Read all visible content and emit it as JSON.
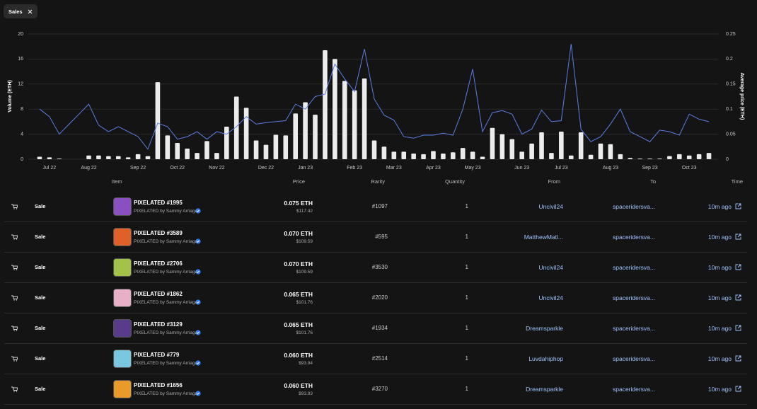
{
  "filter": {
    "label": "Sales"
  },
  "chart_data": {
    "type": "bar-line",
    "y_label": "Volume (ETH)",
    "y2_label": "Average price (ETH)",
    "categories": [
      null,
      "Jul 22",
      null,
      null,
      null,
      "Aug 22",
      null,
      null,
      null,
      null,
      "Sep 22",
      null,
      null,
      null,
      "Oct 22",
      null,
      null,
      null,
      "Nov 22",
      null,
      null,
      null,
      null,
      "Dec 22",
      null,
      null,
      null,
      "Jan 23",
      null,
      null,
      null,
      null,
      "Feb 23",
      null,
      null,
      null,
      "Mar 23",
      null,
      null,
      null,
      "Apr 23",
      null,
      null,
      null,
      "May 23",
      null,
      null,
      null,
      null,
      "Jun 23",
      null,
      null,
      null,
      "Jul 23",
      null,
      null,
      null,
      null,
      "Aug 23",
      null,
      null,
      null,
      "Sep 23",
      null,
      null,
      null,
      "Oct 23",
      null,
      null
    ],
    "series": [
      {
        "type": "bar",
        "color": "#ececec",
        "values": [
          0.4,
          0.3,
          0.1,
          0,
          0,
          0.6,
          0.6,
          0.5,
          0.5,
          0.3,
          0.8,
          0.5,
          12.3,
          3.8,
          2.6,
          1.7,
          1.0,
          2.9,
          1.0,
          5.2,
          10.0,
          8.2,
          3.0,
          2.3,
          3.9,
          3.8,
          7.3,
          9.1,
          7.1,
          17.4,
          16.0,
          12.5,
          11.0,
          12.9,
          3.0,
          2.0,
          1.2,
          1.2,
          0.9,
          0.8,
          1.3,
          0.9,
          1.1,
          1.8,
          1.2,
          0.4,
          5.0,
          4.0,
          3.2,
          1.2,
          2.5,
          4.3,
          1.0,
          4.4,
          0.6,
          4.3,
          0.7,
          2.5,
          2.4,
          0.8,
          0.2,
          0.1,
          0.1,
          0.1,
          0.5,
          0.8,
          0.6,
          0.8,
          1.0
        ]
      },
      {
        "type": "line",
        "axis": "y2",
        "color": "#5a7fe6",
        "values": [
          0.1,
          0.085,
          0.05,
          0.07,
          0.09,
          0.11,
          0.068,
          0.055,
          0.065,
          0.055,
          0.045,
          0.02,
          0.072,
          0.065,
          0.04,
          0.045,
          0.055,
          0.04,
          0.055,
          0.05,
          0.065,
          0.085,
          0.07,
          0.073,
          0.075,
          0.077,
          0.11,
          0.1,
          0.125,
          0.13,
          0.19,
          0.16,
          0.135,
          0.22,
          0.12,
          0.088,
          0.078,
          0.045,
          0.042,
          0.048,
          0.048,
          0.052,
          0.048,
          0.1,
          0.18,
          0.055,
          0.093,
          0.097,
          0.09,
          0.05,
          0.06,
          0.098,
          0.075,
          0.077,
          0.23,
          0.06,
          0.035,
          0.045,
          0.07,
          0.1,
          0.055,
          0.045,
          0.035,
          0.058,
          0.055,
          0.048,
          0.09,
          0.08,
          0.075
        ]
      }
    ],
    "ylim": [
      0,
      20
    ],
    "yticks": [
      0,
      4,
      8,
      12,
      16,
      20
    ],
    "y2lim": [
      0,
      0.25
    ],
    "y2ticks": [
      0,
      0.05,
      0.1,
      0.15,
      0.2,
      0.25
    ],
    "grid": true
  },
  "table": {
    "columns": [
      "Item",
      "Price",
      "Rarity",
      "Quantity",
      "From",
      "To",
      "Time"
    ],
    "rows": [
      {
        "event": "Sale",
        "item": "PIXELATED #1995",
        "collection": "PIXELATED by Sammy Arriaga",
        "price": "0.075 ETH",
        "price_usd": "$117.42",
        "rarity": "#1097",
        "quantity": "1",
        "from": "Uncivil24",
        "to": "spaceridersva...",
        "time": "10m ago"
      },
      {
        "event": "Sale",
        "item": "PIXELATED #3589",
        "collection": "PIXELATED by Sammy Arriaga",
        "price": "0.070 ETH",
        "price_usd": "$109.59",
        "rarity": "#595",
        "quantity": "1",
        "from": "MatthewMatl...",
        "to": "spaceridersva...",
        "time": "10m ago"
      },
      {
        "event": "Sale",
        "item": "PIXELATED #2706",
        "collection": "PIXELATED by Sammy Arriaga",
        "price": "0.070 ETH",
        "price_usd": "$109.59",
        "rarity": "#3530",
        "quantity": "1",
        "from": "Uncivil24",
        "to": "spaceridersva...",
        "time": "10m ago"
      },
      {
        "event": "Sale",
        "item": "PIXELATED #1862",
        "collection": "PIXELATED by Sammy Arriaga",
        "price": "0.065 ETH",
        "price_usd": "$101.76",
        "rarity": "#2020",
        "quantity": "1",
        "from": "Uncivil24",
        "to": "spaceridersva...",
        "time": "10m ago"
      },
      {
        "event": "Sale",
        "item": "PIXELATED #3129",
        "collection": "PIXELATED by Sammy Arriaga",
        "price": "0.065 ETH",
        "price_usd": "$101.76",
        "rarity": "#1934",
        "quantity": "1",
        "from": "Dreamsparkle",
        "to": "spaceridersva...",
        "time": "10m ago"
      },
      {
        "event": "Sale",
        "item": "PIXELATED #779",
        "collection": "PIXELATED by Sammy Arriaga",
        "price": "0.060 ETH",
        "price_usd": "$93.94",
        "rarity": "#2514",
        "quantity": "1",
        "from": "Luvdahiphop",
        "to": "spaceridersva...",
        "time": "10m ago"
      },
      {
        "event": "Sale",
        "item": "PIXELATED #1656",
        "collection": "PIXELATED by Sammy Arriaga",
        "price": "0.060 ETH",
        "price_usd": "$93.93",
        "rarity": "#3270",
        "quantity": "1",
        "from": "Dreamsparkle",
        "to": "spaceridersva...",
        "time": "10m ago"
      }
    ]
  }
}
